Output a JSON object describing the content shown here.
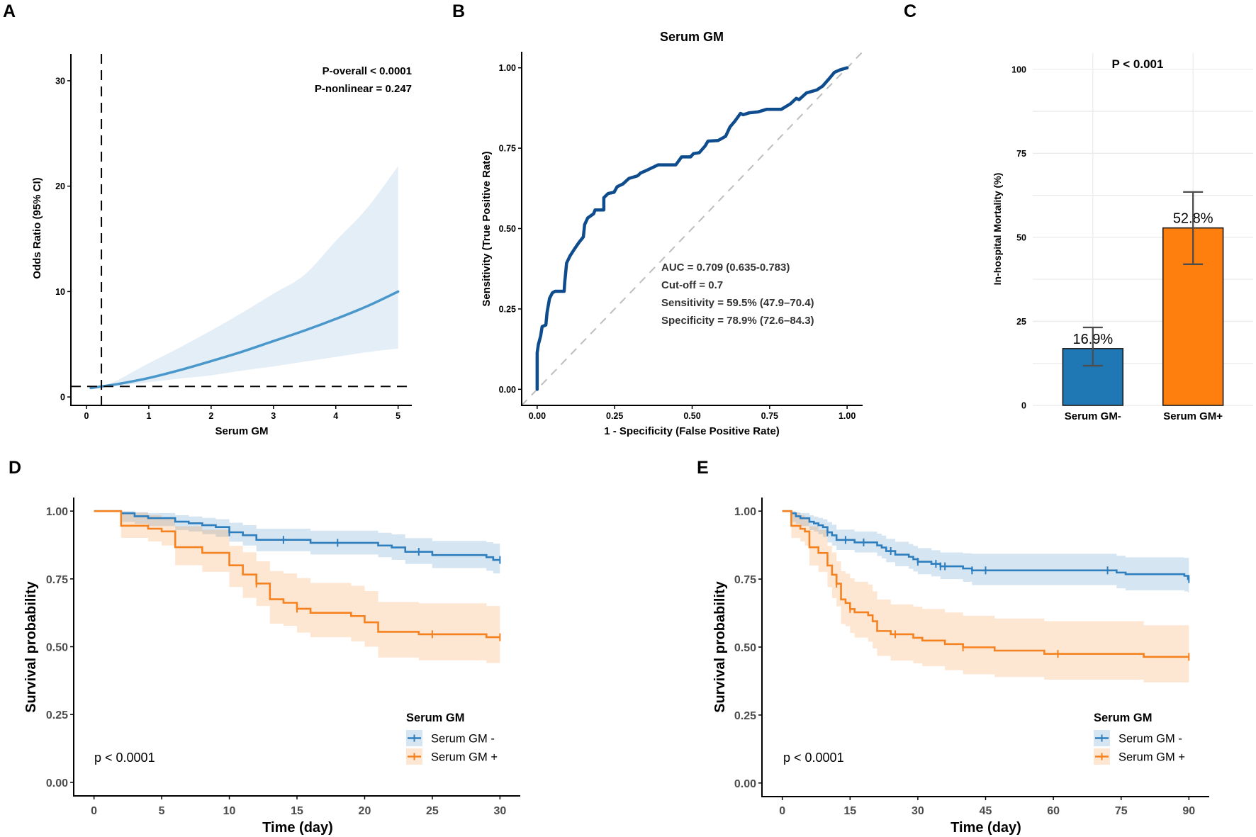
{
  "panel_labels": [
    "A",
    "B",
    "C",
    "D",
    "E"
  ],
  "chart_data": [
    {
      "panel": "A",
      "type": "line",
      "title": "",
      "xlabel": "Serum GM",
      "ylabel": "Odds Ratio (95% CI)",
      "xlim": [
        -0.25,
        5.22
      ],
      "ylim": [
        -0.8,
        32.55
      ],
      "xticks": [
        0,
        1,
        2,
        3,
        4,
        5
      ],
      "xticklabels": [
        "0",
        "1",
        "2",
        "3",
        "4",
        "5"
      ],
      "yticks": [
        0,
        10,
        20,
        30
      ],
      "yticklabels": [
        "0",
        "10",
        "20",
        "30"
      ],
      "grid": false,
      "series": [
        {
          "name": "Odds ratio (restricted cubic spline)",
          "color": "#4A98CB",
          "band_color": "#E4EEF7",
          "x": [
            0.07,
            0.24,
            0.5,
            1,
            1.5,
            2,
            2.5,
            3,
            3.5,
            4,
            4.5,
            5
          ],
          "y": [
            0.85,
            1.0,
            1.22,
            1.8,
            2.55,
            3.4,
            4.3,
            5.3,
            6.3,
            7.4,
            8.6,
            10.0
          ],
          "lower": [
            0.8,
            1.0,
            1.05,
            1.4,
            1.75,
            2.05,
            2.5,
            2.9,
            3.35,
            3.8,
            4.25,
            4.6
          ],
          "upper": [
            0.9,
            1.0,
            1.6,
            3.2,
            4.7,
            6.3,
            8.0,
            9.8,
            11.6,
            14.8,
            17.9,
            21.9
          ]
        }
      ],
      "reference_lines": {
        "vertical_x": 0.24,
        "horizontal_y": 1
      },
      "annotations": [
        "P-overall < 0.0001",
        "P-nonlinear = 0.247"
      ]
    },
    {
      "panel": "B",
      "type": "line",
      "title": "Serum GM",
      "xlabel": "1 - Specificity (False Positive Rate)",
      "ylabel": "Sensitivity (True Positive Rate)",
      "xlim": [
        -0.05,
        1.05
      ],
      "ylim": [
        -0.05,
        1.05
      ],
      "xticks": [
        0,
        0.25,
        0.5,
        0.75,
        1
      ],
      "xticklabels": [
        "0.00",
        "0.25",
        "0.50",
        "0.75",
        "1.00"
      ],
      "yticks": [
        0,
        0.25,
        0.5,
        0.75,
        1
      ],
      "yticklabels": [
        "0.00",
        "0.25",
        "0.50",
        "0.75",
        "1.00"
      ],
      "grid": false,
      "series": [
        {
          "name": "ROC curve",
          "color": "#0E4C8D",
          "x": [
            0,
            0,
            0.004,
            0.011,
            0.016,
            0.028,
            0.032,
            0.04,
            0.049,
            0.058,
            0.087,
            0.089,
            0.095,
            0.106,
            0.12,
            0.135,
            0.149,
            0.153,
            0.163,
            0.182,
            0.187,
            0.215,
            0.215,
            0.229,
            0.248,
            0.258,
            0.277,
            0.296,
            0.324,
            0.334,
            0.353,
            0.39,
            0.447,
            0.457,
            0.466,
            0.495,
            0.504,
            0.523,
            0.542,
            0.551,
            0.584,
            0.608,
            0.622,
            0.637,
            0.656,
            0.665,
            0.684,
            0.713,
            0.741,
            0.788,
            0.817,
            0.836,
            0.845,
            0.869,
            0.902,
            0.921,
            0.94,
            0.959,
            0.978,
            1.0
          ],
          "y": [
            0,
            0.114,
            0.14,
            0.165,
            0.195,
            0.2,
            0.24,
            0.283,
            0.3,
            0.305,
            0.305,
            0.334,
            0.393,
            0.415,
            0.436,
            0.457,
            0.474,
            0.512,
            0.533,
            0.546,
            0.558,
            0.558,
            0.596,
            0.609,
            0.613,
            0.63,
            0.639,
            0.656,
            0.664,
            0.673,
            0.681,
            0.698,
            0.698,
            0.711,
            0.723,
            0.723,
            0.733,
            0.736,
            0.757,
            0.772,
            0.774,
            0.787,
            0.816,
            0.833,
            0.858,
            0.854,
            0.86,
            0.863,
            0.871,
            0.871,
            0.888,
            0.905,
            0.901,
            0.922,
            0.931,
            0.943,
            0.964,
            0.986,
            0.994,
            1.0
          ]
        },
        {
          "name": "Chance line",
          "color": "#BDBDBD",
          "dashed": true,
          "x": [
            -0.05,
            1.05
          ],
          "y": [
            -0.05,
            1.05
          ]
        }
      ],
      "annotations": [
        "AUC = 0.709 (0.635-0.783)",
        "Cut-off = 0.7",
        "Sensitivity = 59.5% (47.9–70.4)",
        "Specificity = 78.9% (72.6–84.3)"
      ]
    },
    {
      "panel": "C",
      "type": "bar",
      "title": "",
      "xlabel": "",
      "ylabel": "In-hospital Mortality (%)",
      "categories": [
        "Serum GM-",
        "Serum GM+"
      ],
      "values": [
        16.9,
        52.8
      ],
      "error_low": [
        11.8,
        42.0
      ],
      "error_high": [
        23.2,
        63.5
      ],
      "value_labels": [
        "16.9%",
        "52.8%"
      ],
      "colors": [
        "#1F77B4",
        "#FF7F0E"
      ],
      "xlim": [
        0.4,
        2.6
      ],
      "ylim": [
        0,
        104.8
      ],
      "yticks": [
        0,
        25,
        50,
        75,
        100
      ],
      "yticklabels": [
        "0",
        "25",
        "50",
        "75",
        "100"
      ],
      "grid": true,
      "annotations": [
        "P < 0.001"
      ]
    },
    {
      "panel": "D",
      "type": "line",
      "subtype": "kaplan-meier",
      "title": "",
      "xlabel": "Time (day)",
      "ylabel": "Survival probability",
      "xlim": [
        -1.5,
        31.5
      ],
      "ylim": [
        -0.05,
        1.05
      ],
      "xticks": [
        0,
        5,
        10,
        15,
        20,
        25,
        30
      ],
      "xticklabels": [
        "0",
        "5",
        "10",
        "15",
        "20",
        "25",
        "30"
      ],
      "yticks": [
        0,
        0.25,
        0.5,
        0.75,
        1
      ],
      "yticklabels": [
        "0.00",
        "0.25",
        "0.50",
        "0.75",
        "1.00"
      ],
      "grid": false,
      "legend": {
        "title": "Serum GM",
        "position": "bottom-right"
      },
      "annotations": [
        "p < 0.0001"
      ],
      "series": [
        {
          "name": "Serum GM -",
          "color": "#2E7EBE",
          "end": 30,
          "steps_format": [
            "time",
            "survival",
            "ci_lower",
            "ci_upper"
          ],
          "steps": [
            [
              0,
              1,
              1,
              1
            ],
            [
              2,
              0.992,
              0.96,
              1
            ],
            [
              3,
              0.981,
              0.953,
              0.996
            ],
            [
              4,
              0.974,
              0.945,
              0.993
            ],
            [
              6,
              0.961,
              0.93,
              0.985
            ],
            [
              7,
              0.955,
              0.925,
              0.98
            ],
            [
              8,
              0.948,
              0.915,
              0.975
            ],
            [
              9,
              0.941,
              0.905,
              0.97
            ],
            [
              10,
              0.922,
              0.887,
              0.957
            ],
            [
              11,
              0.911,
              0.873,
              0.948
            ],
            [
              12,
              0.894,
              0.852,
              0.935
            ],
            [
              16,
              0.883,
              0.84,
              0.928
            ],
            [
              21,
              0.873,
              0.83,
              0.92
            ],
            [
              22,
              0.866,
              0.82,
              0.914
            ],
            [
              23,
              0.85,
              0.805,
              0.9
            ],
            [
              25,
              0.838,
              0.79,
              0.89
            ],
            [
              29,
              0.83,
              0.78,
              0.885
            ],
            [
              29.5,
              0.82,
              0.77,
              0.88
            ]
          ],
          "censored": [
            10,
            14,
            18,
            24,
            30
          ]
        },
        {
          "name": "Serum GM +",
          "color": "#F58220",
          "end": 30,
          "steps_format": [
            "time",
            "survival",
            "ci_lower",
            "ci_upper"
          ],
          "steps": [
            [
              0,
              1,
              1,
              1
            ],
            [
              2,
              0.946,
              0.901,
              0.994
            ],
            [
              4,
              0.935,
              0.888,
              0.985
            ],
            [
              5,
              0.925,
              0.873,
              0.975
            ],
            [
              6,
              0.867,
              0.8,
              0.944
            ],
            [
              8,
              0.846,
              0.776,
              0.931
            ],
            [
              10,
              0.8,
              0.72,
              0.872
            ],
            [
              11,
              0.766,
              0.68,
              0.848
            ],
            [
              12,
              0.733,
              0.65,
              0.815
            ],
            [
              13,
              0.675,
              0.585,
              0.779
            ],
            [
              14,
              0.662,
              0.577,
              0.77
            ],
            [
              15,
              0.64,
              0.552,
              0.753
            ],
            [
              16,
              0.625,
              0.535,
              0.735
            ],
            [
              19,
              0.613,
              0.52,
              0.725
            ],
            [
              20,
              0.59,
              0.5,
              0.705
            ],
            [
              21,
              0.555,
              0.46,
              0.665
            ],
            [
              24,
              0.546,
              0.45,
              0.66
            ],
            [
              29,
              0.535,
              0.44,
              0.65
            ]
          ],
          "censored": [
            12,
            15,
            25,
            30
          ]
        }
      ]
    },
    {
      "panel": "E",
      "type": "line",
      "subtype": "kaplan-meier",
      "title": "",
      "xlabel": "Time (day)",
      "ylabel": "Survival probability",
      "xlim": [
        -4.5,
        94.5
      ],
      "ylim": [
        -0.05,
        1.05
      ],
      "xticks": [
        0,
        15,
        30,
        45,
        60,
        75,
        90
      ],
      "xticklabels": [
        "0",
        "15",
        "30",
        "45",
        "60",
        "75",
        "90"
      ],
      "yticks": [
        0,
        0.25,
        0.5,
        0.75,
        1
      ],
      "yticklabels": [
        "0.00",
        "0.25",
        "0.50",
        "0.75",
        "1.00"
      ],
      "grid": false,
      "legend": {
        "title": "Serum GM",
        "position": "bottom-right"
      },
      "annotations": [
        "p < 0.0001"
      ],
      "series": [
        {
          "name": "Serum GM -",
          "color": "#2E7EBE",
          "end": 90,
          "steps_format": [
            "time",
            "survival",
            "ci_lower",
            "ci_upper"
          ],
          "steps": [
            [
              0,
              1,
              1,
              1
            ],
            [
              2,
              0.992,
              0.96,
              1
            ],
            [
              3,
              0.981,
              0.953,
              0.996
            ],
            [
              4,
              0.974,
              0.945,
              0.993
            ],
            [
              6,
              0.961,
              0.93,
              0.985
            ],
            [
              7,
              0.955,
              0.925,
              0.98
            ],
            [
              8,
              0.948,
              0.915,
              0.975
            ],
            [
              9,
              0.941,
              0.905,
              0.97
            ],
            [
              10,
              0.922,
              0.885,
              0.96
            ],
            [
              11,
              0.911,
              0.873,
              0.95
            ],
            [
              12,
              0.894,
              0.857,
              0.932
            ],
            [
              16,
              0.885,
              0.848,
              0.925
            ],
            [
              21,
              0.874,
              0.835,
              0.917
            ],
            [
              22,
              0.866,
              0.826,
              0.91
            ],
            [
              23,
              0.853,
              0.812,
              0.898
            ],
            [
              25,
              0.84,
              0.797,
              0.887
            ],
            [
              28,
              0.832,
              0.788,
              0.879
            ],
            [
              29,
              0.823,
              0.778,
              0.872
            ],
            [
              30,
              0.814,
              0.768,
              0.864
            ],
            [
              33,
              0.806,
              0.76,
              0.856
            ],
            [
              35,
              0.797,
              0.75,
              0.848
            ],
            [
              40,
              0.789,
              0.74,
              0.845
            ],
            [
              42,
              0.782,
              0.728,
              0.843
            ],
            [
              74,
              0.774,
              0.716,
              0.836
            ],
            [
              76,
              0.768,
              0.709,
              0.83
            ],
            [
              89,
              0.762,
              0.705,
              0.828
            ],
            [
              89.8,
              0.75,
              0.7,
              0.828
            ]
          ],
          "censored": [
            10,
            14,
            18,
            24,
            30,
            34,
            35,
            36,
            42,
            45,
            72,
            90
          ]
        },
        {
          "name": "Serum GM +",
          "color": "#F58220",
          "end": 90,
          "steps_format": [
            "time",
            "survival",
            "ci_lower",
            "ci_upper"
          ],
          "steps": [
            [
              0,
              1,
              1,
              1
            ],
            [
              2,
              0.946,
              0.901,
              0.994
            ],
            [
              4,
              0.935,
              0.888,
              0.985
            ],
            [
              5,
              0.925,
              0.873,
              0.975
            ],
            [
              6,
              0.867,
              0.8,
              0.944
            ],
            [
              8,
              0.846,
              0.776,
              0.931
            ],
            [
              10,
              0.8,
              0.72,
              0.872
            ],
            [
              11,
              0.766,
              0.68,
              0.848
            ],
            [
              12,
              0.733,
              0.65,
              0.815
            ],
            [
              13,
              0.675,
              0.585,
              0.779
            ],
            [
              14,
              0.662,
              0.577,
              0.77
            ],
            [
              15,
              0.64,
              0.552,
              0.753
            ],
            [
              16,
              0.628,
              0.535,
              0.74
            ],
            [
              19,
              0.617,
              0.52,
              0.73
            ],
            [
              20,
              0.595,
              0.495,
              0.705
            ],
            [
              21,
              0.559,
              0.467,
              0.675
            ],
            [
              24,
              0.547,
              0.45,
              0.657
            ],
            [
              29,
              0.534,
              0.44,
              0.649
            ],
            [
              31,
              0.524,
              0.43,
              0.64
            ],
            [
              36,
              0.511,
              0.415,
              0.627
            ],
            [
              40,
              0.499,
              0.4,
              0.615
            ],
            [
              47,
              0.487,
              0.39,
              0.605
            ],
            [
              58,
              0.475,
              0.38,
              0.595
            ],
            [
              80,
              0.464,
              0.37,
              0.58
            ]
          ],
          "censored": [
            12,
            15,
            25,
            40,
            61,
            90
          ]
        }
      ]
    }
  ]
}
